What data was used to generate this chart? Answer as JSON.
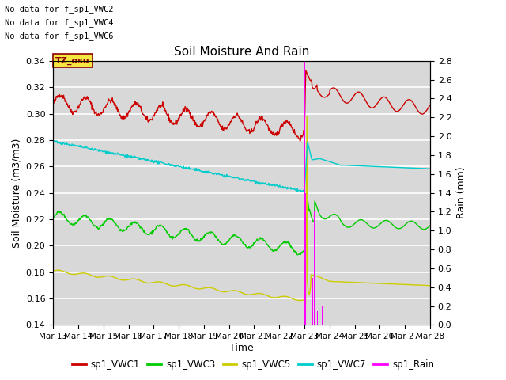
{
  "title": "Soil Moisture And Rain",
  "ylabel_left": "Soil Moisture (m3/m3)",
  "ylabel_right": "Rain (mm)",
  "xlabel": "Time",
  "ylim_left": [
    0.14,
    0.34
  ],
  "ylim_right": [
    0.0,
    2.8
  ],
  "background_color": "#d8d8d8",
  "no_data_texts": [
    "No data for f_sp1_VWC2",
    "No data for f_sp1_VWC4",
    "No data for f_sp1_VWC6"
  ],
  "tz_label": "TZ_osu",
  "x_tick_labels": [
    "Mar 13",
    "Mar 14",
    "Mar 15",
    "Mar 16",
    "Mar 17",
    "Mar 18",
    "Mar 19",
    "Mar 20",
    "Mar 21",
    "Mar 22",
    "Mar 23",
    "Mar 24",
    "Mar 25",
    "Mar 26",
    "Mar 27",
    "Mar 28"
  ],
  "colors": {
    "VWC1": "#cc0000",
    "VWC3": "#00cc00",
    "VWC5": "#cccc00",
    "VWC7": "#00cccc",
    "Rain": "#ff00ff"
  },
  "legend_entries": [
    "sp1_VWC1",
    "sp1_VWC3",
    "sp1_VWC5",
    "sp1_VWC7",
    "sp1_Rain"
  ]
}
